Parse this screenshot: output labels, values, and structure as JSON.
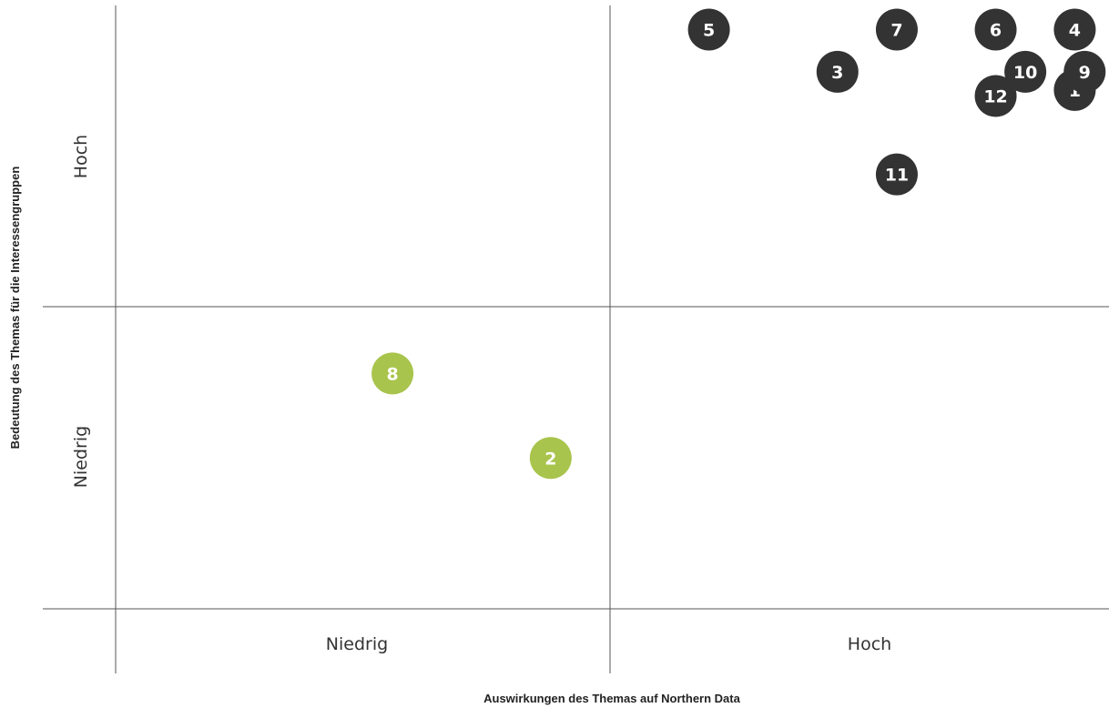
{
  "chart_data": {
    "type": "scatter",
    "title": "",
    "xlabel": "Auswirkungen des Themas auf Northern Data",
    "ylabel": "Bedeutung des Themas für die Interessengruppen",
    "xlim": [
      0,
      10
    ],
    "ylim": [
      0,
      10
    ],
    "x_categories": [
      "Niedrig",
      "Hoch"
    ],
    "y_categories": [
      "Niedrig",
      "Hoch"
    ],
    "threshold": {
      "x": 5,
      "y": 5
    },
    "grid": false,
    "legend": "none",
    "colors": {
      "high_priority": "#333333",
      "low_priority": "#a8c44c"
    },
    "points": [
      {
        "label": "1",
        "x": 9.7,
        "y": 8.6,
        "group": "high_priority"
      },
      {
        "label": "2",
        "x": 4.4,
        "y": 2.5,
        "group": "low_priority"
      },
      {
        "label": "3",
        "x": 7.3,
        "y": 8.9,
        "group": "high_priority"
      },
      {
        "label": "4",
        "x": 9.7,
        "y": 9.6,
        "group": "high_priority"
      },
      {
        "label": "5",
        "x": 6.0,
        "y": 9.6,
        "group": "high_priority"
      },
      {
        "label": "6",
        "x": 8.9,
        "y": 9.6,
        "group": "high_priority"
      },
      {
        "label": "7",
        "x": 7.9,
        "y": 9.6,
        "group": "high_priority"
      },
      {
        "label": "8",
        "x": 2.8,
        "y": 3.9,
        "group": "low_priority"
      },
      {
        "label": "9",
        "x": 9.8,
        "y": 8.9,
        "group": "high_priority"
      },
      {
        "label": "10",
        "x": 9.2,
        "y": 8.9,
        "group": "high_priority"
      },
      {
        "label": "11",
        "x": 7.9,
        "y": 7.2,
        "group": "high_priority"
      },
      {
        "label": "12",
        "x": 8.9,
        "y": 8.5,
        "group": "high_priority"
      }
    ]
  }
}
